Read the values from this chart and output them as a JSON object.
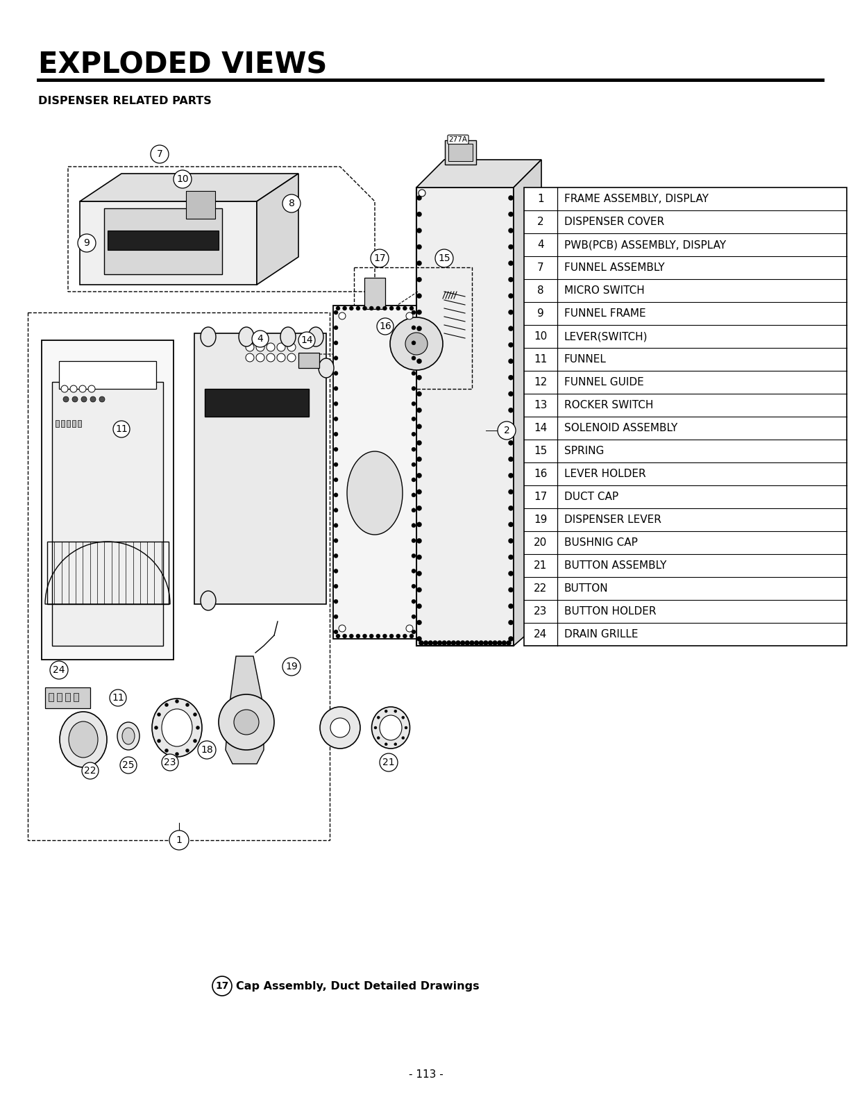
{
  "title": "EXPLODED VIEWS",
  "subtitle": "DISPENSER RELATED PARTS",
  "parts_table": [
    [
      1,
      "FRAME ASSEMBLY, DISPLAY"
    ],
    [
      2,
      "DISPENSER COVER"
    ],
    [
      4,
      "PWB(PCB) ASSEMBLY, DISPLAY"
    ],
    [
      7,
      "FUNNEL ASSEMBLY"
    ],
    [
      8,
      "MICRO SWITCH"
    ],
    [
      9,
      "FUNNEL FRAME"
    ],
    [
      10,
      "LEVER(SWITCH)"
    ],
    [
      11,
      "FUNNEL"
    ],
    [
      12,
      "FUNNEL GUIDE"
    ],
    [
      13,
      "ROCKER SWITCH"
    ],
    [
      14,
      "SOLENOID ASSEMBLY"
    ],
    [
      15,
      "SPRING"
    ],
    [
      16,
      "LEVER HOLDER"
    ],
    [
      17,
      "DUCT CAP"
    ],
    [
      19,
      "DISPENSER LEVER"
    ],
    [
      20,
      "BUSHNIG CAP"
    ],
    [
      21,
      "BUTTON ASSEMBLY"
    ],
    [
      22,
      "BUTTON"
    ],
    [
      23,
      "BUTTON HOLDER"
    ],
    [
      24,
      "DRAIN GRILLE"
    ]
  ],
  "footnote": "Cap Assembly, Duct Detailed Drawings",
  "footnote_num": "17",
  "page_num": "- 113 -",
  "bg_color": "#ffffff",
  "text_color": "#000000"
}
